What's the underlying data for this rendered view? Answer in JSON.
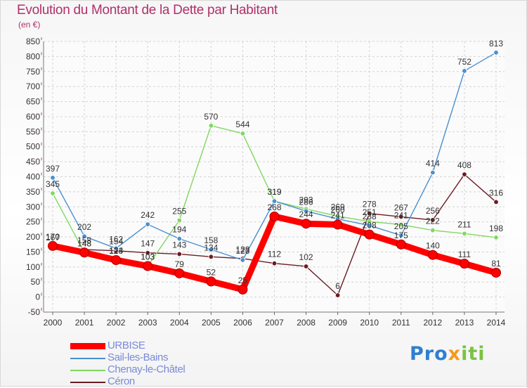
{
  "title": "Evolution du Montant de la Dette par Habitant",
  "subtitle": "(en €)",
  "logo": {
    "part1": "Pro",
    "part2": "x",
    "part3": "iti"
  },
  "chart_data": {
    "type": "line",
    "title": "Evolution du Montant de la Dette par Habitant",
    "ylabel": "(en €)",
    "xlabel": "",
    "x": [
      "2000",
      "2001",
      "2002",
      "2003",
      "2004",
      "2005",
      "2006",
      "2007",
      "2008",
      "2009",
      "2010",
      "2011",
      "2012",
      "2013",
      "2014"
    ],
    "ylim": [
      -50,
      850
    ],
    "yticks": [
      -50,
      0,
      50,
      100,
      150,
      200,
      250,
      300,
      350,
      400,
      450,
      500,
      550,
      600,
      650,
      700,
      750,
      800,
      850
    ],
    "grid": true,
    "legend_position": "bottom-left",
    "series": [
      {
        "name": "URBISE",
        "color": "#ff0000",
        "values": [
          170,
          148,
          123,
          103,
          79,
          52,
          25,
          268,
          244,
          241,
          208,
          175,
          140,
          111,
          81
        ]
      },
      {
        "name": "Sail-les-Bains",
        "color": "#4a90d0",
        "values": [
          397,
          202,
          162,
          242,
          194,
          158,
          123,
          319,
          286,
          260,
          238,
          205,
          414,
          752,
          813
        ]
      },
      {
        "name": "Chenay-le-Châtel",
        "color": "#80d860",
        "values": [
          345,
          148,
          124,
          103,
          255,
          570,
          544,
          319,
          293,
          269,
          251,
          241,
          222,
          211,
          198
        ]
      },
      {
        "name": "Céron",
        "color": "#6a1c24",
        "values": [
          167,
          158,
          154,
          147,
          143,
          134,
          128,
          112,
          102,
          6,
          278,
          267,
          256,
          408,
          316
        ]
      }
    ]
  }
}
